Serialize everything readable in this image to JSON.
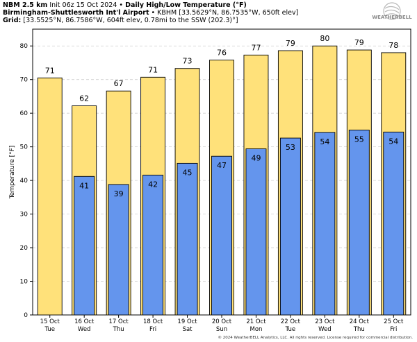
{
  "header": {
    "model": "NBM 2.5 km",
    "init": "Init 06z 15 Oct 2024",
    "bullet": "•",
    "product": "Daily High/Low Temperature (°F)",
    "station_name": "Birmingham-Shuttlesworth Int'l Airport",
    "station_info": "KBHM [33.5629°N, 86.7535°W, 650ft elev]",
    "grid_label": "Grid:",
    "grid_info": "[33.5525°N, 86.7586°W, 604ft elev, 0.78mi to the SSW (202.3)°]"
  },
  "logo": {
    "text": "WEATHERBELL",
    "icon": "swirl-logo-icon"
  },
  "copyright": "© 2024 WeatherBELL Analytics, LLC. All rights reserved. License required for commercial distribution.",
  "colors": {
    "high": "#ffe17a",
    "low": "#6495ed",
    "grid": "#d0d0d0"
  },
  "chart_data": {
    "type": "bar",
    "ylabel": "Temperature [°F]",
    "ylim": [
      0,
      85
    ],
    "yticks": [
      0,
      10,
      20,
      30,
      40,
      50,
      60,
      70,
      80
    ],
    "grid": true,
    "categories": [
      "15 Oct",
      "16 Oct",
      "17 Oct",
      "18 Oct",
      "19 Oct",
      "20 Oct",
      "21 Oct",
      "22 Oct",
      "23 Oct",
      "24 Oct",
      "25 Oct"
    ],
    "weekdays": [
      "Tue",
      "Wed",
      "Thu",
      "Fri",
      "Sat",
      "Sun",
      "Mon",
      "Tue",
      "Wed",
      "Thu",
      "Fri"
    ],
    "series": [
      {
        "values": [
          70.5,
          62.2,
          66.6,
          70.7,
          73.3,
          75.8,
          77.3,
          78.6,
          80.0,
          78.8,
          78.0
        ],
        "labels": [
          "71",
          "62",
          "67",
          "71",
          "73",
          "76",
          "77",
          "79",
          "80",
          "79",
          "78"
        ]
      },
      {
        "values": [
          null,
          41.2,
          38.8,
          41.6,
          45.1,
          47.2,
          49.4,
          52.6,
          54.3,
          55.0,
          54.4
        ],
        "labels": [
          "",
          "41",
          "39",
          "42",
          "45",
          "47",
          "49",
          "53",
          "54",
          "55",
          "54"
        ]
      }
    ]
  }
}
